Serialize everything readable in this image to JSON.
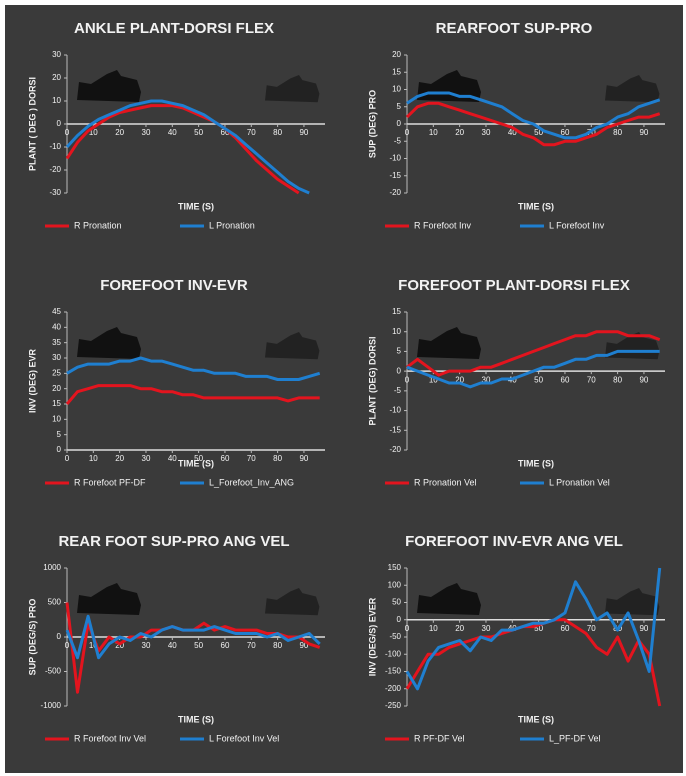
{
  "chart_data": [
    {
      "type": "line",
      "title": "ANKLE PLANT-DORSI FLEX",
      "x_label": "TIME (S)",
      "y_label": "PLANT ( DEG ) DORSI",
      "x": [
        0,
        4,
        8,
        12,
        16,
        20,
        24,
        28,
        32,
        36,
        40,
        44,
        48,
        52,
        56,
        60,
        64,
        68,
        72,
        76,
        80,
        84,
        88,
        92,
        96
      ],
      "xlim": [
        0,
        98
      ],
      "xticks": [
        0,
        10,
        20,
        30,
        40,
        50,
        60,
        70,
        80,
        90
      ],
      "ylim": [
        -30,
        30
      ],
      "yticks": [
        -30,
        -20,
        -10,
        0,
        10,
        20,
        30
      ],
      "series": [
        {
          "name": "R Pronation",
          "color": "#e3141e",
          "values": [
            -15,
            -8,
            -3,
            0,
            3,
            5,
            6,
            7,
            8,
            8,
            8,
            7,
            5,
            3,
            1,
            -2,
            -6,
            -11,
            -16,
            -20,
            -24,
            -27,
            -30,
            null,
            null
          ]
        },
        {
          "name": "L Pronation",
          "color": "#1f7fd0",
          "values": [
            -10,
            -5,
            -1,
            2,
            4,
            6,
            8,
            9,
            10,
            10,
            9,
            8,
            6,
            4,
            1,
            -2,
            -5,
            -9,
            -13,
            -17,
            -21,
            -25,
            -28,
            -30,
            null
          ]
        }
      ]
    },
    {
      "type": "line",
      "title": "REARFOOT SUP-PRO",
      "x_label": "TIME (S)",
      "y_label": "SUP (DEG) PRO",
      "x": [
        0,
        4,
        8,
        12,
        16,
        20,
        24,
        28,
        32,
        36,
        40,
        44,
        48,
        52,
        56,
        60,
        64,
        68,
        72,
        76,
        80,
        84,
        88,
        92,
        96
      ],
      "xlim": [
        0,
        98
      ],
      "xticks": [
        0,
        10,
        20,
        30,
        40,
        50,
        60,
        70,
        80,
        90
      ],
      "ylim": [
        -20,
        20
      ],
      "yticks": [
        -20,
        -15,
        -10,
        -5,
        0,
        5,
        10,
        15,
        20
      ],
      "series": [
        {
          "name": "R Forefoot Inv",
          "color": "#e3141e",
          "values": [
            2,
            5,
            6,
            6,
            5,
            4,
            3,
            2,
            1,
            0,
            -1,
            -3,
            -4,
            -6,
            -6,
            -5,
            -5,
            -4,
            -3,
            -1,
            0,
            1,
            2,
            2,
            3
          ]
        },
        {
          "name": "L Forefoot Inv",
          "color": "#1f7fd0",
          "values": [
            6,
            8,
            9,
            9,
            9,
            8,
            8,
            7,
            6,
            5,
            3,
            1,
            0,
            -2,
            -3,
            -4,
            -4,
            -3,
            -1,
            0,
            2,
            3,
            5,
            6,
            7
          ]
        }
      ]
    },
    {
      "type": "line",
      "title": "FOREFOOT INV-EVR",
      "x_label": "TIME (S)",
      "y_label": "INV (DEG) EVR",
      "x": [
        0,
        4,
        8,
        12,
        16,
        20,
        24,
        28,
        32,
        36,
        40,
        44,
        48,
        52,
        56,
        60,
        64,
        68,
        72,
        76,
        80,
        84,
        88,
        92,
        96
      ],
      "xlim": [
        0,
        98
      ],
      "xticks": [
        0,
        10,
        20,
        30,
        40,
        50,
        60,
        70,
        80,
        90
      ],
      "ylim": [
        0,
        45
      ],
      "yticks": [
        0,
        5,
        10,
        15,
        20,
        25,
        30,
        35,
        40,
        45
      ],
      "series": [
        {
          "name": "R Forefoot PF-DF",
          "color": "#e3141e",
          "values": [
            15,
            19,
            20,
            21,
            21,
            21,
            21,
            20,
            20,
            19,
            19,
            18,
            18,
            17,
            17,
            17,
            17,
            17,
            17,
            17,
            17,
            16,
            17,
            17,
            17
          ]
        },
        {
          "name": "L_Forefoot_Inv_ANG",
          "color": "#1f7fd0",
          "values": [
            25,
            27,
            28,
            28,
            28,
            29,
            29,
            30,
            29,
            29,
            28,
            27,
            26,
            26,
            25,
            25,
            25,
            24,
            24,
            24,
            23,
            23,
            23,
            24,
            25
          ]
        }
      ]
    },
    {
      "type": "line",
      "title": "FOREFOOT PLANT-DORSI FLEX",
      "x_label": "TIME (S)",
      "y_label": "PLANT (DEG) DORSI",
      "x": [
        0,
        4,
        8,
        12,
        16,
        20,
        24,
        28,
        32,
        36,
        40,
        44,
        48,
        52,
        56,
        60,
        64,
        68,
        72,
        76,
        80,
        84,
        88,
        92,
        96
      ],
      "xlim": [
        0,
        98
      ],
      "xticks": [
        0,
        10,
        20,
        30,
        40,
        50,
        60,
        70,
        80,
        90
      ],
      "ylim": [
        -20,
        15
      ],
      "yticks": [
        -20,
        -15,
        -10,
        -5,
        0,
        5,
        10,
        15
      ],
      "series": [
        {
          "name": "R Pronation Vel",
          "color": "#e3141e",
          "values": [
            1,
            3,
            1,
            -1,
            0,
            0,
            0,
            1,
            1,
            2,
            3,
            4,
            5,
            6,
            7,
            8,
            9,
            9,
            10,
            10,
            10,
            9,
            9,
            9,
            8
          ]
        },
        {
          "name": "L Pronation Vel",
          "color": "#1f7fd0",
          "values": [
            1,
            0,
            -1,
            -2,
            -3,
            -3,
            -4,
            -3,
            -3,
            -2,
            -2,
            -1,
            0,
            1,
            1,
            2,
            3,
            3,
            4,
            4,
            5,
            5,
            5,
            5,
            5
          ]
        }
      ]
    },
    {
      "type": "line",
      "title": "REAR FOOT SUP-PRO ANG VEL",
      "x_label": "TIME (S)",
      "y_label": "SUP (DEG/S) PRO",
      "x": [
        0,
        4,
        8,
        12,
        16,
        20,
        24,
        28,
        32,
        36,
        40,
        44,
        48,
        52,
        56,
        60,
        64,
        68,
        72,
        76,
        80,
        84,
        88,
        92,
        96
      ],
      "xlim": [
        0,
        98
      ],
      "xticks": [
        0,
        10,
        20,
        30,
        40,
        50,
        60,
        70,
        80,
        90
      ],
      "ylim": [
        -1000,
        1000
      ],
      "yticks": [
        -1000,
        -500,
        0,
        500,
        1000
      ],
      "series": [
        {
          "name": "R Forefoot Inv Vel",
          "color": "#e3141e",
          "values": [
            500,
            -800,
            200,
            -200,
            0,
            -100,
            0,
            0,
            100,
            100,
            150,
            100,
            100,
            200,
            100,
            150,
            100,
            100,
            100,
            50,
            50,
            0,
            0,
            -100,
            -150
          ]
        },
        {
          "name": "L Forefoot Inv Vel",
          "color": "#1f7fd0",
          "values": [
            100,
            -300,
            300,
            -300,
            -100,
            0,
            -50,
            50,
            0,
            100,
            150,
            100,
            100,
            100,
            150,
            100,
            50,
            50,
            50,
            0,
            50,
            -50,
            0,
            50,
            -100
          ]
        }
      ]
    },
    {
      "type": "line",
      "title": "FOREFOOT INV-EVR ANG VEL",
      "x_label": "TIME (S)",
      "y_label": "INV (DEG/S) EVER",
      "x": [
        0,
        4,
        8,
        12,
        16,
        20,
        24,
        28,
        32,
        36,
        40,
        44,
        48,
        52,
        56,
        60,
        64,
        68,
        72,
        76,
        80,
        84,
        88,
        92,
        96
      ],
      "xlim": [
        0,
        98
      ],
      "xticks": [
        0,
        10,
        20,
        30,
        40,
        50,
        60,
        70,
        80,
        90
      ],
      "ylim": [
        -250,
        150
      ],
      "yticks": [
        -250,
        -200,
        -150,
        -100,
        -50,
        0,
        50,
        100,
        150
      ],
      "series": [
        {
          "name": "R PF-DF Vel",
          "color": "#e3141e",
          "values": [
            -200,
            -150,
            -100,
            -100,
            -80,
            -70,
            -60,
            -50,
            -50,
            -40,
            -30,
            -20,
            -20,
            -10,
            0,
            0,
            -20,
            -40,
            -80,
            -100,
            -50,
            -120,
            -60,
            -100,
            -250
          ]
        },
        {
          "name": "L_PF-DF Vel",
          "color": "#1f7fd0",
          "values": [
            -150,
            -200,
            -120,
            -80,
            -70,
            -60,
            -90,
            -50,
            -60,
            -30,
            -30,
            -20,
            -10,
            -10,
            0,
            20,
            110,
            60,
            0,
            20,
            -30,
            20,
            -60,
            -150,
            150
          ]
        }
      ]
    }
  ]
}
